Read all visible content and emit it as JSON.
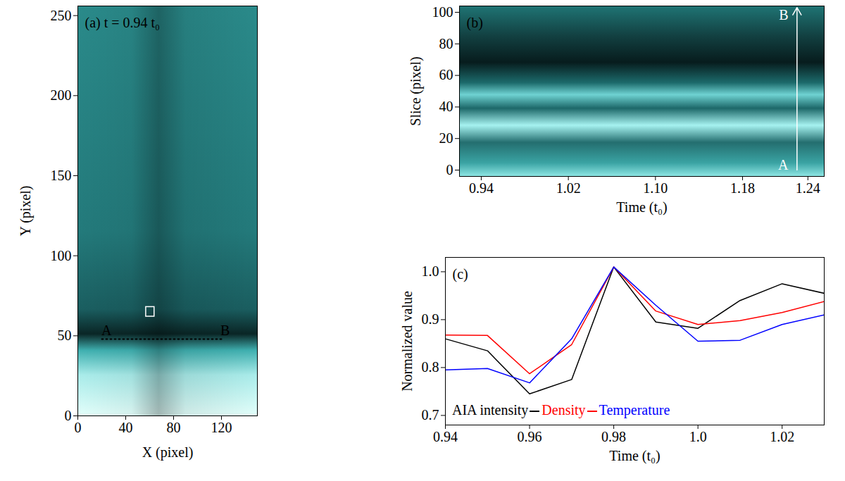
{
  "chart_data": [
    {
      "type": "image",
      "title": "(a) t = 0.94 t₀",
      "x_label": "X (pixel)",
      "y_label": "Y (pixel)",
      "xlim": [
        0,
        150
      ],
      "ylim": [
        0,
        256
      ],
      "xticks": [
        0,
        40,
        80,
        120
      ],
      "yticks": [
        0,
        50,
        100,
        150,
        200,
        250
      ],
      "slice": {
        "x1": 20,
        "x2": 120,
        "y": 48,
        "line_style": "dotted",
        "color": "black"
      },
      "box": {
        "x1": 57,
        "x2": 64,
        "y1": 62,
        "y2": 68,
        "color": "white"
      },
      "annotations": [
        {
          "text": "A",
          "x": 24,
          "y": 53,
          "color": "black"
        },
        {
          "text": "B",
          "x": 123,
          "y": 53,
          "color": "black"
        }
      ]
    },
    {
      "type": "image",
      "title": "(b)",
      "x_label": "Time (t₀)",
      "y_label": "Slice (pixel)",
      "xlim": [
        0.92,
        1.255
      ],
      "ylim": [
        -4,
        104
      ],
      "xticks": [
        0.94,
        1.02,
        {
          "value": 1.1,
          "label": "1.10"
        },
        1.18,
        1.24
      ],
      "yticks": [
        0,
        20,
        40,
        60,
        80,
        100
      ],
      "arrow": {
        "x": 1.23,
        "y1": 0,
        "y2": 103,
        "color": "white"
      },
      "annotations": [
        {
          "text": "A",
          "x": 1.222,
          "y": 3,
          "color": "white"
        },
        {
          "text": "B",
          "x": 1.222,
          "y": 98,
          "color": "white"
        }
      ]
    },
    {
      "type": "line",
      "title": "(c)",
      "x_label": "Time (t₀)",
      "y_label": "Normalized value",
      "xlim": [
        0.94,
        1.03
      ],
      "ylim": [
        0.68,
        1.03
      ],
      "xticks": [
        0.94,
        0.96,
        0.98,
        {
          "value": 1,
          "label": "1.0"
        },
        1.02
      ],
      "yticks": [
        0.7,
        0.8,
        0.9,
        {
          "value": 1,
          "label": "1.0"
        }
      ],
      "legend": "lower left",
      "x": [
        0.94,
        0.95,
        0.96,
        0.97,
        0.98,
        0.99,
        1.0,
        1.01,
        1.02,
        1.03
      ],
      "series": [
        {
          "name": "AIA intensity",
          "color": "black",
          "values": [
            0.86,
            0.835,
            0.745,
            0.775,
            1.01,
            0.895,
            0.882,
            0.94,
            0.975,
            0.955
          ]
        },
        {
          "name": "Density",
          "color": "red",
          "values": [
            0.868,
            0.867,
            0.787,
            0.848,
            1.01,
            0.918,
            0.89,
            0.898,
            0.915,
            0.938
          ]
        },
        {
          "name": "Temperature",
          "color": "blue",
          "values": [
            0.795,
            0.798,
            0.768,
            0.86,
            1.01,
            0.93,
            0.855,
            0.857,
            0.89,
            0.91
          ]
        }
      ]
    }
  ]
}
